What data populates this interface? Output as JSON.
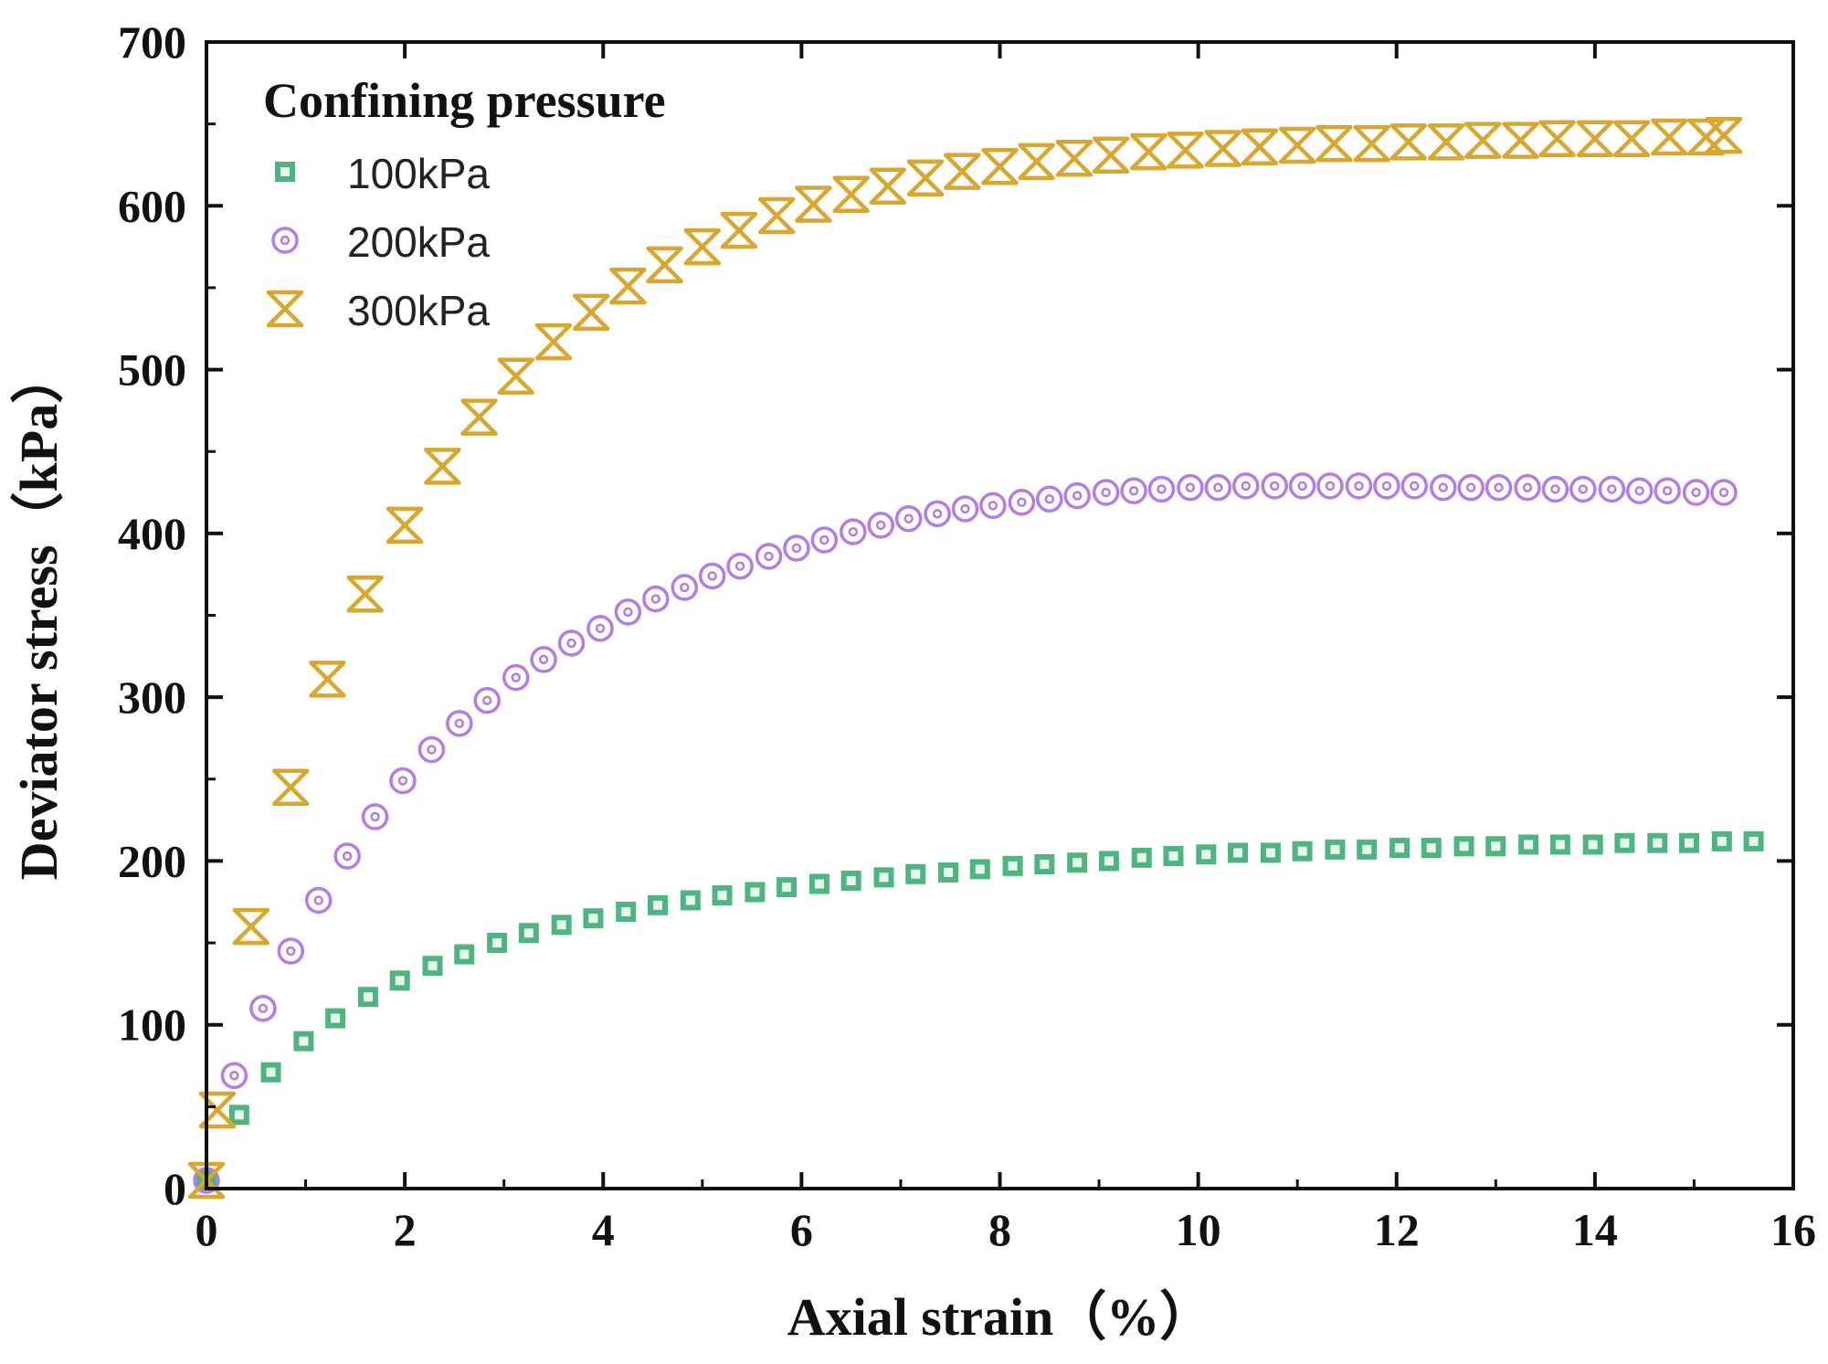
{
  "chart_data": {
    "type": "scatter",
    "xlabel": "Axial strain（%）",
    "ylabel": "Deviator stress（kPa）",
    "xlim": [
      0,
      16
    ],
    "ylim": [
      0,
      700
    ],
    "xticks": [
      "0",
      "2",
      "4",
      "6",
      "8",
      "10",
      "12",
      "14",
      "16"
    ],
    "yticks": [
      "0",
      "100",
      "200",
      "300",
      "400",
      "500",
      "600",
      "700"
    ],
    "grid": false,
    "legend_title": "Confining pressure",
    "legend_position": "top-left",
    "series": [
      {
        "name": "100kPa",
        "marker": "square",
        "color": "#2fa86a",
        "x": [
          0.0,
          0.33,
          0.65,
          0.98,
          1.3,
          1.63,
          1.95,
          2.28,
          2.6,
          2.93,
          3.25,
          3.58,
          3.9,
          4.23,
          4.55,
          4.88,
          5.2,
          5.53,
          5.85,
          6.18,
          6.5,
          6.83,
          7.15,
          7.48,
          7.8,
          8.13,
          8.45,
          8.78,
          9.1,
          9.43,
          9.75,
          10.08,
          10.4,
          10.73,
          11.05,
          11.38,
          11.7,
          12.03,
          12.35,
          12.68,
          13.0,
          13.33,
          13.65,
          13.98,
          14.3,
          14.63,
          14.95,
          15.28,
          15.6
        ],
        "y": [
          5,
          45,
          71,
          90,
          104,
          117,
          127,
          136,
          143,
          150,
          156,
          161,
          165,
          169,
          173,
          176,
          179,
          181,
          184,
          186,
          188,
          190,
          192,
          193,
          195,
          197,
          198,
          199,
          200,
          202,
          203,
          204,
          205,
          205,
          206,
          207,
          207,
          208,
          208,
          209,
          209,
          210,
          210,
          210,
          211,
          211,
          211,
          212,
          212
        ]
      },
      {
        "name": "200kPa",
        "marker": "circle",
        "color": "#b57be6",
        "x": [
          0.0,
          0.28,
          0.57,
          0.85,
          1.13,
          1.42,
          1.7,
          1.98,
          2.27,
          2.55,
          2.83,
          3.12,
          3.4,
          3.68,
          3.97,
          4.25,
          4.53,
          4.82,
          5.1,
          5.38,
          5.67,
          5.95,
          6.23,
          6.52,
          6.8,
          7.08,
          7.37,
          7.65,
          7.93,
          8.22,
          8.5,
          8.78,
          9.07,
          9.35,
          9.63,
          9.92,
          10.2,
          10.48,
          10.77,
          11.05,
          11.33,
          11.62,
          11.9,
          12.18,
          12.47,
          12.75,
          13.03,
          13.32,
          13.6,
          13.88,
          14.17,
          14.45,
          14.73,
          15.02,
          15.3
        ],
        "y": [
          5,
          69,
          110,
          145,
          176,
          203,
          227,
          249,
          268,
          284,
          298,
          312,
          323,
          333,
          342,
          352,
          360,
          367,
          374,
          380,
          386,
          391,
          396,
          401,
          405,
          409,
          412,
          415,
          417,
          419,
          421,
          423,
          425,
          426,
          427,
          428,
          428,
          429,
          429,
          429,
          429,
          429,
          429,
          429,
          428,
          428,
          428,
          428,
          427,
          427,
          427,
          426,
          426,
          425,
          425
        ]
      },
      {
        "name": "300kPa",
        "marker": "star",
        "color": "#d9a62e",
        "x": [
          0.0,
          0.11,
          0.45,
          0.85,
          1.22,
          1.6,
          2.0,
          2.38,
          2.75,
          3.12,
          3.5,
          3.88,
          4.25,
          4.62,
          5.0,
          5.37,
          5.75,
          6.12,
          6.5,
          6.87,
          7.25,
          7.62,
          8.0,
          8.37,
          8.75,
          9.12,
          9.5,
          9.87,
          10.25,
          10.62,
          11.0,
          11.37,
          11.75,
          12.12,
          12.5,
          12.87,
          13.25,
          13.62,
          14.0,
          14.37,
          14.75,
          15.12,
          15.3
        ],
        "y": [
          5,
          48,
          160,
          245,
          311,
          363,
          405,
          441,
          471,
          496,
          517,
          535,
          551,
          564,
          575,
          585,
          594,
          601,
          607,
          612,
          617,
          621,
          624,
          627,
          629,
          631,
          633,
          634,
          635,
          636,
          637,
          638,
          638,
          639,
          639,
          640,
          640,
          641,
          641,
          641,
          642,
          642,
          643
        ]
      }
    ]
  }
}
